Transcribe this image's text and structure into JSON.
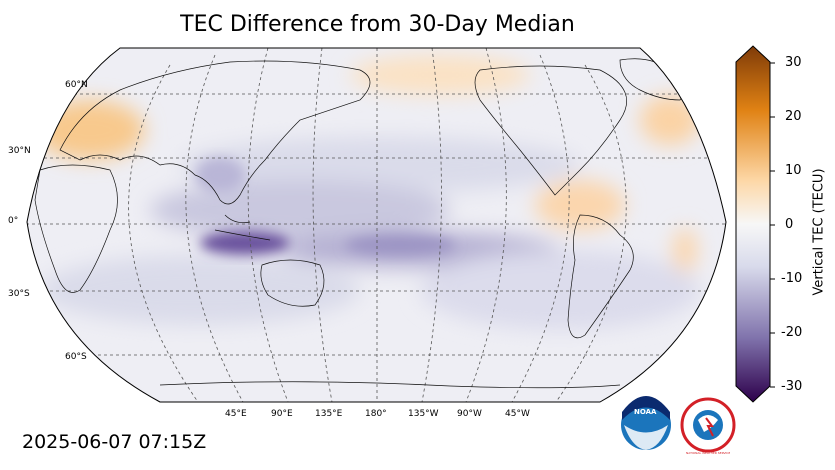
{
  "title": "TEC Difference from 30-Day Median",
  "timestamp": "2025-06-07 07:15Z",
  "colorbar": {
    "label": "Vertical TEC (TECU)",
    "ticks": [
      "30",
      "20",
      "10",
      "0",
      "-10",
      "-20",
      "-30"
    ],
    "range": [
      -30,
      30
    ],
    "colors": {
      "max": "#7f3b08",
      "high": "#e08214",
      "pos": "#fdd8a8",
      "zero": "#f7f7f7",
      "neg": "#d8daeb",
      "low": "#8073ac",
      "min": "#2d004b"
    }
  },
  "map": {
    "projection": "Robinson (centered 180°)",
    "lat_labels": [
      "60°N",
      "30°N",
      "0°",
      "30°S",
      "60°S"
    ],
    "lon_labels": [
      "45°E",
      "90°E",
      "135°E",
      "180°",
      "135°W",
      "90°W",
      "45°W"
    ],
    "gridlines": true
  },
  "logos": {
    "noaa": "NOAA",
    "nws": "NATIONAL WEATHER SERVICE"
  }
}
